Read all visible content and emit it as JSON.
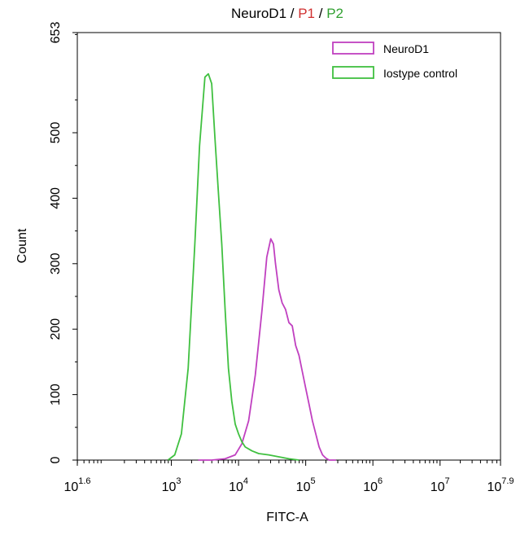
{
  "chart_data": {
    "type": "line",
    "title": {
      "parts": [
        {
          "text": "NeuroD1",
          "color": "#000000"
        },
        {
          "text": " / ",
          "color": "#000000"
        },
        {
          "text": "P1",
          "color": "#d03030"
        },
        {
          "text": " / ",
          "color": "#000000"
        },
        {
          "text": "P2",
          "color": "#30a030"
        }
      ]
    },
    "xlabel": "FITC-A",
    "ylabel": "Count",
    "x_scale": "log",
    "xlim": [
      1.6,
      7.9
    ],
    "ylim": [
      0,
      653
    ],
    "x_ticks": [
      {
        "exp": 1.6,
        "base": "10",
        "sup": "1.6"
      },
      {
        "exp": 3,
        "base": "10",
        "sup": "3"
      },
      {
        "exp": 4,
        "base": "10",
        "sup": "4"
      },
      {
        "exp": 5,
        "base": "10",
        "sup": "5"
      },
      {
        "exp": 6,
        "base": "10",
        "sup": "6"
      },
      {
        "exp": 7,
        "base": "10",
        "sup": "7"
      },
      {
        "exp": 7.9,
        "base": "10",
        "sup": "7.9"
      }
    ],
    "y_ticks": [
      0,
      100,
      200,
      300,
      400,
      500,
      653
    ],
    "grid": false,
    "legend_position": "top-right",
    "series": [
      {
        "name": "NeuroD1",
        "color": "#c040c0",
        "x_log": [
          3.4,
          3.6,
          3.8,
          3.95,
          4.05,
          4.15,
          4.25,
          4.35,
          4.42,
          4.48,
          4.52,
          4.55,
          4.6,
          4.65,
          4.7,
          4.75,
          4.8,
          4.85,
          4.9,
          4.95,
          5.0,
          5.05,
          5.1,
          5.15,
          5.2,
          5.25,
          5.3,
          5.35,
          5.45
        ],
        "y": [
          0,
          0,
          2,
          8,
          25,
          60,
          130,
          230,
          310,
          338,
          330,
          300,
          260,
          240,
          230,
          210,
          205,
          175,
          160,
          135,
          110,
          85,
          60,
          40,
          20,
          8,
          3,
          0,
          0
        ]
      },
      {
        "name": "Iostype control",
        "color": "#40c040",
        "x_log": [
          2.95,
          3.05,
          3.15,
          3.25,
          3.35,
          3.42,
          3.5,
          3.55,
          3.6,
          3.65,
          3.7,
          3.75,
          3.8,
          3.85,
          3.9,
          3.95,
          4.0,
          4.05,
          4.1,
          4.2,
          4.3,
          4.45,
          4.6,
          4.75,
          4.9
        ],
        "y": [
          0,
          8,
          40,
          140,
          330,
          480,
          585,
          590,
          575,
          490,
          410,
          330,
          230,
          140,
          90,
          55,
          40,
          28,
          20,
          14,
          10,
          8,
          5,
          2,
          0
        ]
      }
    ]
  }
}
